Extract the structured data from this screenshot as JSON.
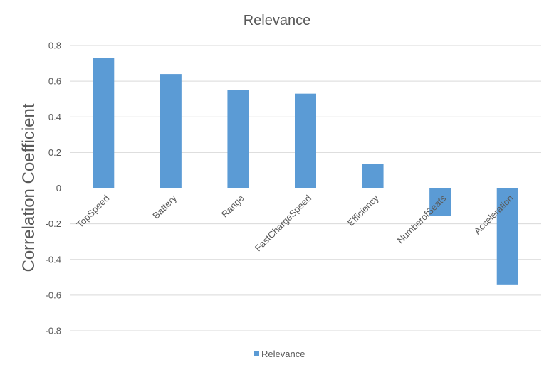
{
  "chart_data": {
    "type": "bar",
    "title": "Relevance",
    "xlabel": "",
    "ylabel": "Correlation Coefficient",
    "categories": [
      "TopSpeed",
      "Battery",
      "Range",
      "FastChargeSpeed",
      "Efficiency",
      "NumberofSeats",
      "Acceleration"
    ],
    "series": [
      {
        "name": "Relevance",
        "values": [
          0.73,
          0.64,
          0.55,
          0.53,
          0.135,
          -0.155,
          -0.54
        ]
      }
    ],
    "ylim": [
      -0.8,
      0.8
    ],
    "yticks": [
      0.8,
      0.6,
      0.4,
      0.2,
      0,
      -0.2,
      -0.4,
      -0.6,
      -0.8
    ],
    "ytick_labels": [
      "0.8",
      "0.6",
      "0.4",
      "0.2",
      "0",
      "-0.2",
      "-0.4",
      "-0.6",
      "-0.8"
    ],
    "grid": true,
    "legend": "bottom",
    "colors": {
      "bar": "#5b9bd5"
    }
  }
}
